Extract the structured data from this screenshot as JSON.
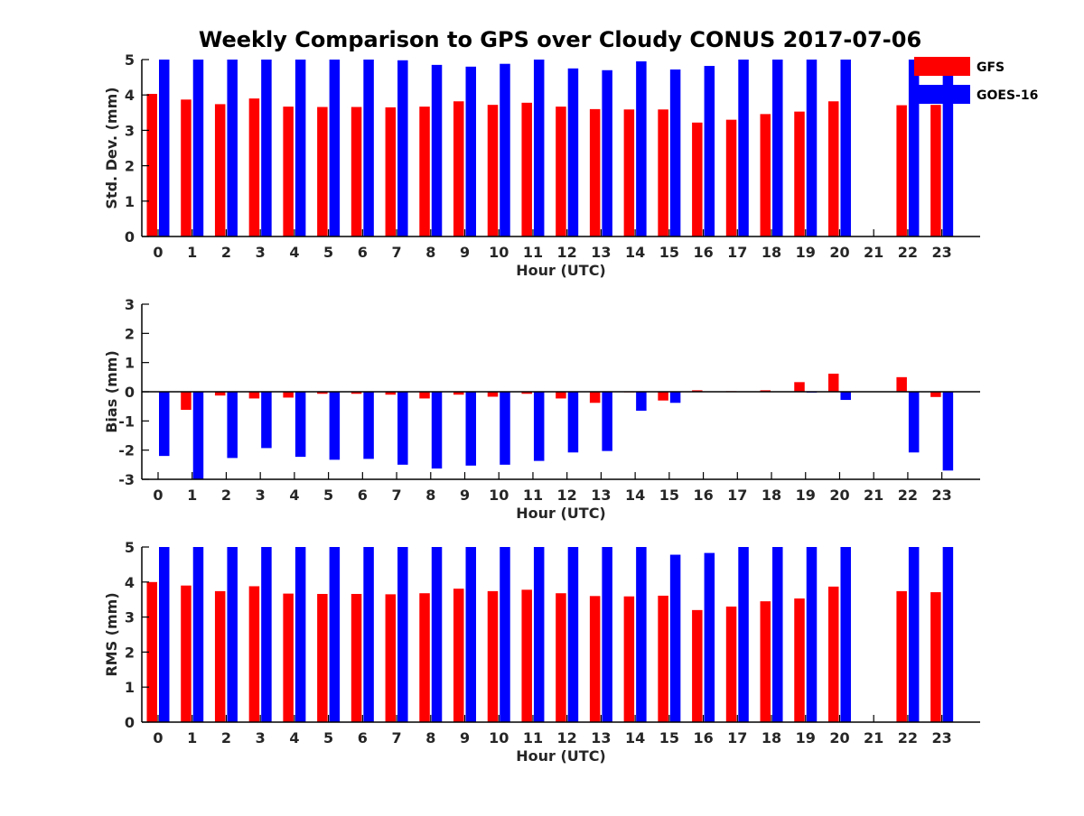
{
  "title": "Weekly Comparison to GPS over Cloudy CONUS 2017-07-06",
  "legend": {
    "position": "top-right",
    "items": [
      {
        "label": "GFS",
        "color": "#ff0000"
      },
      {
        "label": "GOES-16",
        "color": "#0000ff"
      }
    ]
  },
  "chart_data": [
    {
      "type": "bar",
      "title": "",
      "xlabel": "Hour (UTC)",
      "ylabel": "Std. Dev. (mm)",
      "ylim": [
        0,
        5
      ],
      "yticks": [
        0,
        1,
        2,
        3,
        4,
        5
      ],
      "grid": false,
      "categories": [
        "0",
        "1",
        "2",
        "3",
        "4",
        "5",
        "6",
        "7",
        "8",
        "9",
        "10",
        "11",
        "12",
        "13",
        "14",
        "15",
        "16",
        "17",
        "18",
        "19",
        "20",
        "21",
        "22",
        "23"
      ],
      "series": [
        {
          "name": "GFS",
          "color": "#ff0000",
          "values": [
            4.03,
            3.87,
            3.74,
            3.9,
            3.67,
            3.66,
            3.66,
            3.65,
            3.67,
            3.82,
            3.72,
            3.78,
            3.67,
            3.6,
            3.59,
            3.59,
            3.22,
            3.3,
            3.46,
            3.53,
            3.82,
            null,
            3.71,
            3.72
          ]
        },
        {
          "name": "GOES-16",
          "color": "#0000ff",
          "values": [
            5.0,
            5.0,
            5.0,
            5.0,
            5.0,
            5.0,
            5.0,
            4.98,
            4.85,
            4.8,
            4.88,
            5.0,
            4.75,
            4.7,
            4.95,
            4.72,
            4.82,
            5.0,
            5.0,
            5.0,
            5.0,
            null,
            5.0,
            5.0
          ]
        }
      ]
    },
    {
      "type": "bar",
      "title": "",
      "xlabel": "Hour (UTC)",
      "ylabel": "Bias (mm)",
      "ylim": [
        -3,
        3
      ],
      "yticks": [
        -3,
        -2,
        -1,
        0,
        1,
        2,
        3
      ],
      "grid": false,
      "categories": [
        "0",
        "1",
        "2",
        "3",
        "4",
        "5",
        "6",
        "7",
        "8",
        "9",
        "10",
        "11",
        "12",
        "13",
        "14",
        "15",
        "16",
        "17",
        "18",
        "19",
        "20",
        "21",
        "22",
        "23"
      ],
      "series": [
        {
          "name": "GFS",
          "color": "#ff0000",
          "values": [
            0.0,
            -0.62,
            -0.13,
            -0.23,
            -0.2,
            -0.07,
            -0.07,
            -0.1,
            -0.23,
            -0.1,
            -0.17,
            -0.07,
            -0.23,
            -0.38,
            -0.02,
            -0.3,
            0.05,
            0.02,
            0.05,
            0.33,
            0.62,
            null,
            0.5,
            -0.18
          ]
        },
        {
          "name": "GOES-16",
          "color": "#0000ff",
          "values": [
            -2.2,
            -3.0,
            -2.27,
            -1.93,
            -2.23,
            -2.33,
            -2.3,
            -2.5,
            -2.63,
            -2.53,
            -2.5,
            -2.37,
            -2.08,
            -2.03,
            -0.65,
            -0.38,
            0.0,
            0.0,
            0.0,
            -0.03,
            -0.28,
            null,
            -2.08,
            -2.7
          ]
        }
      ]
    },
    {
      "type": "bar",
      "title": "",
      "xlabel": "Hour (UTC)",
      "ylabel": "RMS (mm)",
      "ylim": [
        0,
        5
      ],
      "yticks": [
        0,
        1,
        2,
        3,
        4,
        5
      ],
      "grid": false,
      "categories": [
        "0",
        "1",
        "2",
        "3",
        "4",
        "5",
        "6",
        "7",
        "8",
        "9",
        "10",
        "11",
        "12",
        "13",
        "14",
        "15",
        "16",
        "17",
        "18",
        "19",
        "20",
        "21",
        "22",
        "23"
      ],
      "series": [
        {
          "name": "GFS",
          "color": "#ff0000",
          "values": [
            4.0,
            3.9,
            3.74,
            3.88,
            3.67,
            3.66,
            3.66,
            3.65,
            3.68,
            3.81,
            3.74,
            3.78,
            3.68,
            3.6,
            3.59,
            3.61,
            3.2,
            3.3,
            3.45,
            3.53,
            3.87,
            null,
            3.74,
            3.71
          ]
        },
        {
          "name": "GOES-16",
          "color": "#0000ff",
          "values": [
            5.0,
            5.0,
            5.0,
            5.0,
            5.0,
            5.0,
            5.0,
            5.0,
            5.0,
            5.0,
            5.0,
            5.0,
            5.0,
            5.0,
            5.0,
            4.78,
            4.83,
            5.0,
            5.0,
            5.0,
            5.0,
            null,
            5.0,
            5.0
          ]
        }
      ]
    }
  ]
}
